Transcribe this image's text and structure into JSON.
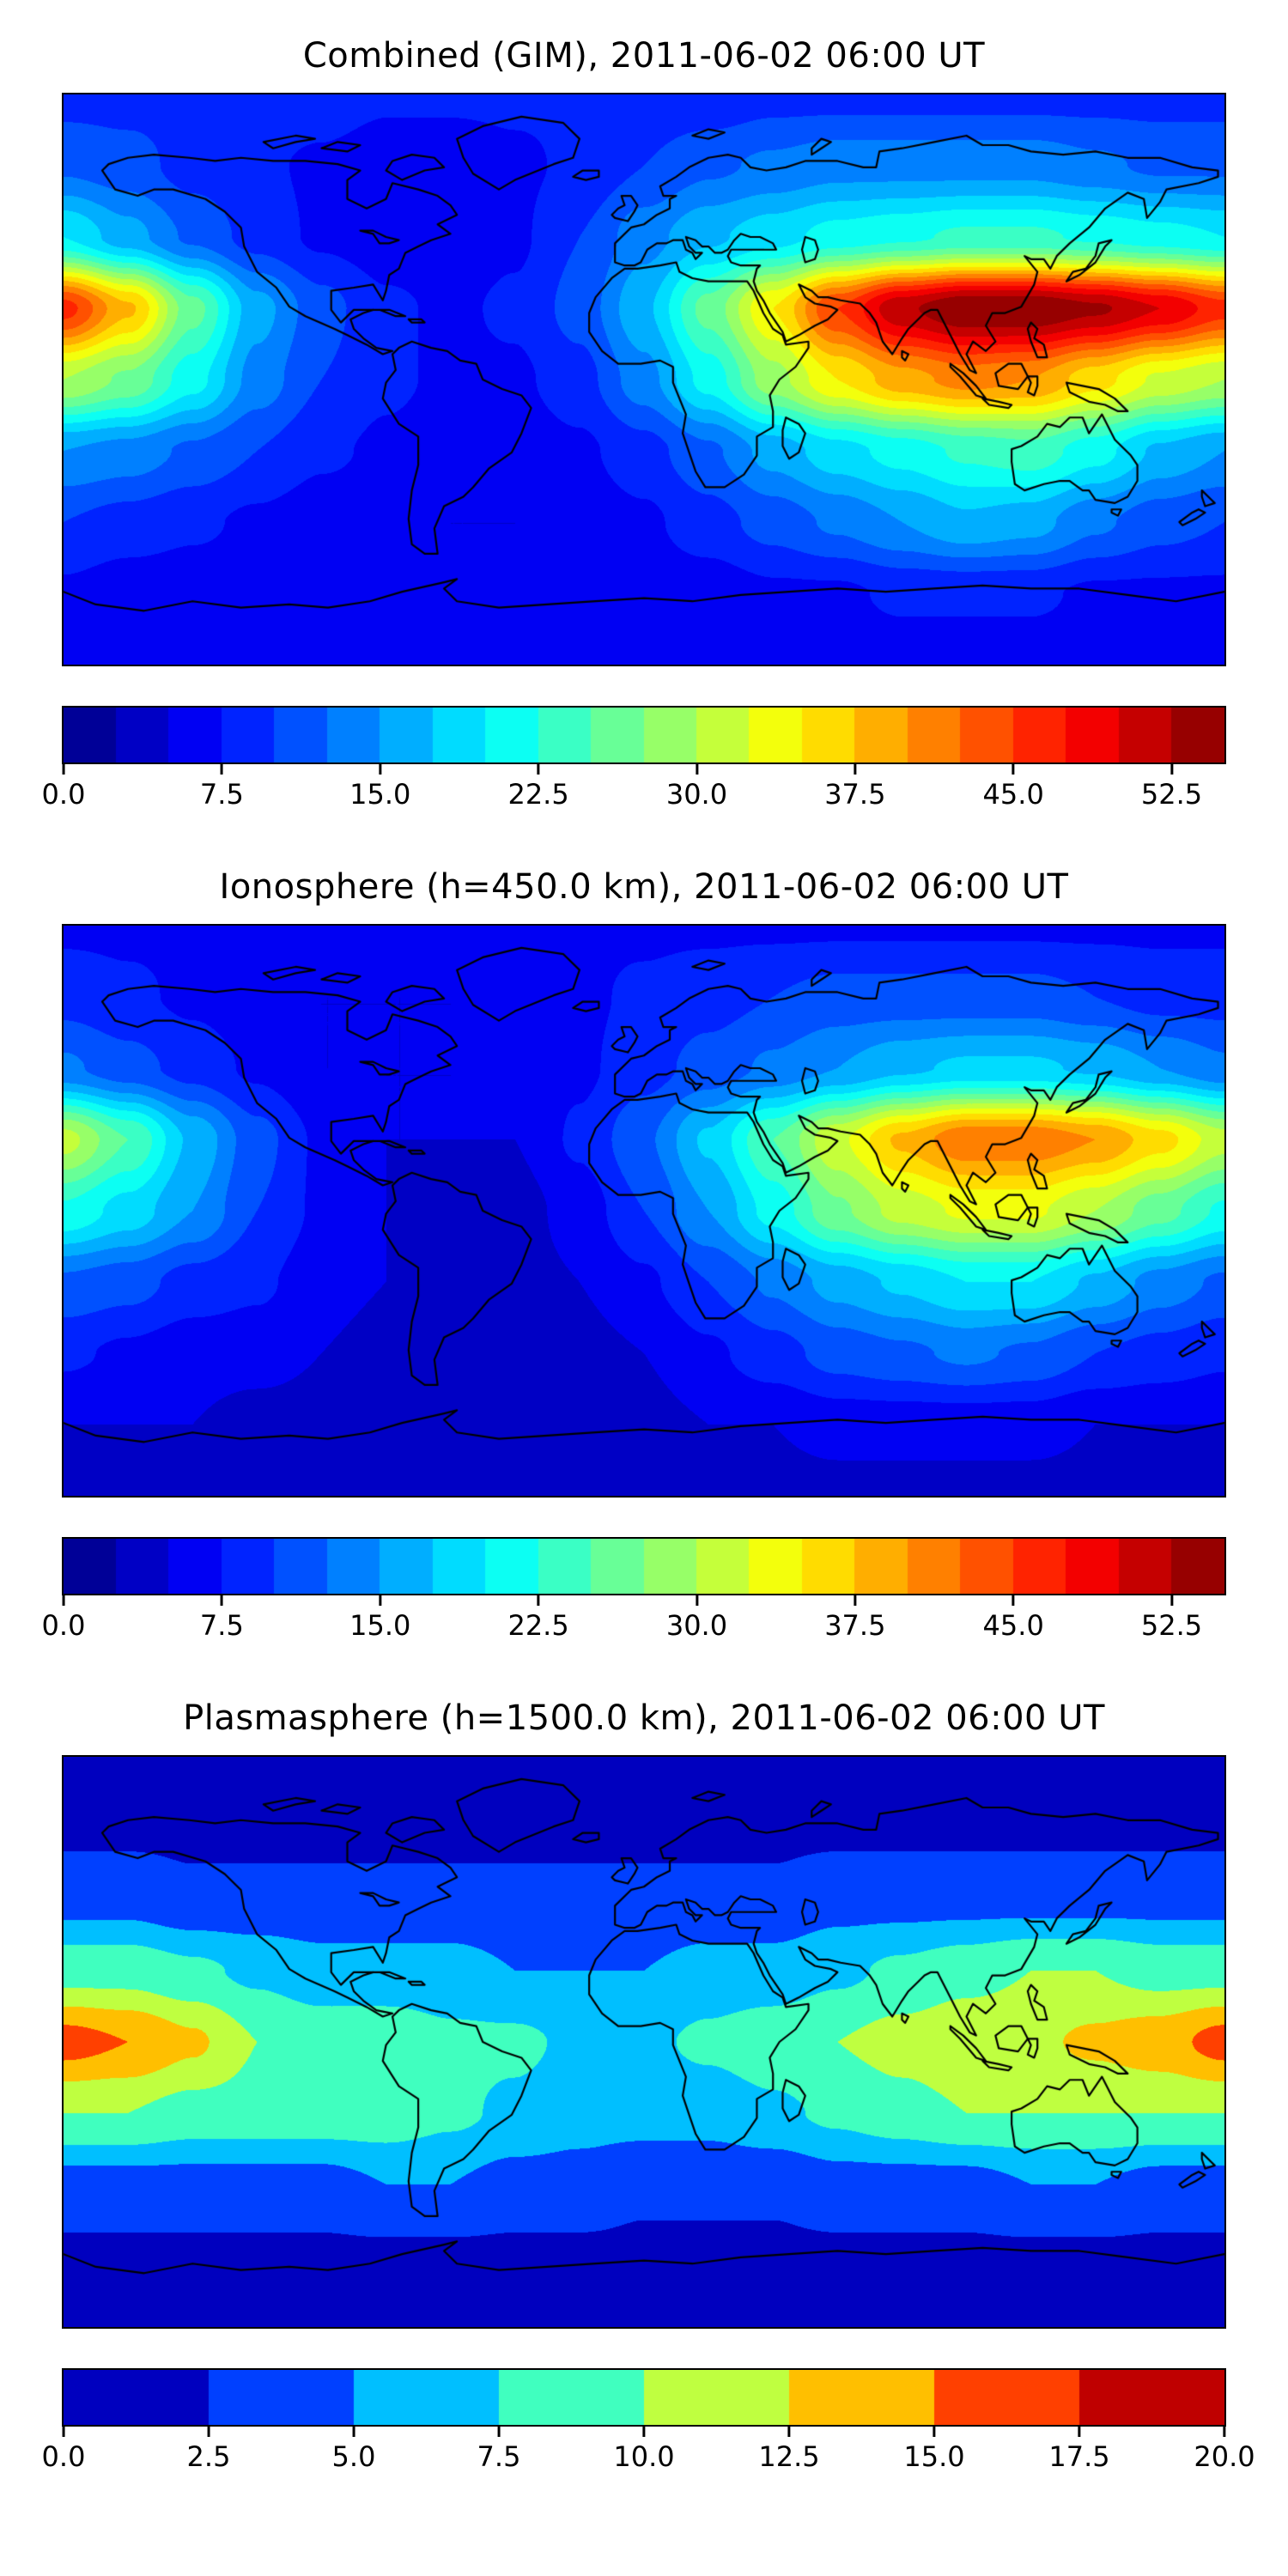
{
  "chart_data": [
    {
      "type": "heatmap",
      "subtype": "filled-contour-world-map",
      "title": "Combined (GIM), 2011-06-02 06:00 UT",
      "colormap": "jet",
      "projection": "equirectangular, lon -180..180, lat -90..90",
      "vmin": 0.0,
      "vmax": 55.0,
      "level_step": 2.5,
      "colorbar_ticks": [
        0.0,
        7.5,
        15.0,
        22.5,
        30.0,
        37.5,
        45.0,
        52.5
      ],
      "colorbar_tick_labels": [
        "0.0",
        "7.5",
        "15.0",
        "22.5",
        "30.0",
        "37.5",
        "45.0",
        "52.5"
      ],
      "lon": [
        -180,
        -160,
        -140,
        -120,
        -100,
        -80,
        -60,
        -40,
        -20,
        0,
        20,
        40,
        60,
        80,
        100,
        120,
        140,
        160,
        180
      ],
      "lat": [
        90,
        67.5,
        45,
        22.5,
        0,
        -22.5,
        -45,
        -67.5,
        -90
      ],
      "values": [
        [
          9,
          9,
          9,
          9,
          9,
          8,
          8,
          8,
          8,
          8,
          8,
          9,
          9,
          9,
          9,
          9,
          9,
          9,
          9
        ],
        [
          12,
          11,
          9,
          8,
          7,
          6,
          6,
          7,
          8,
          10,
          12,
          13,
          14,
          14,
          14,
          14,
          13,
          12,
          12
        ],
        [
          20,
          16,
          12,
          9,
          7,
          6,
          6,
          7,
          10,
          14,
          17,
          19,
          21,
          22,
          23,
          23,
          22,
          21,
          20
        ],
        [
          46,
          38,
          26,
          16,
          11,
          8,
          7,
          8,
          11,
          17,
          26,
          35,
          45,
          52,
          55,
          55,
          53,
          50,
          46
        ],
        [
          30,
          27,
          21,
          14,
          10,
          8,
          7,
          7,
          9,
          14,
          21,
          29,
          35,
          39,
          41,
          40,
          36,
          32,
          30
        ],
        [
          15,
          14,
          12,
          10,
          8,
          7,
          6,
          6,
          7,
          9,
          12,
          16,
          19,
          21,
          23,
          24,
          21,
          17,
          15
        ],
        [
          10,
          9,
          8,
          7,
          6,
          6,
          5,
          5,
          6,
          7,
          9,
          11,
          13,
          15,
          17,
          16,
          13,
          11,
          10
        ],
        [
          7,
          6,
          6,
          6,
          5,
          5,
          5,
          5,
          5,
          6,
          6,
          7,
          7,
          8,
          8,
          8,
          7,
          7,
          7
        ],
        [
          6,
          6,
          6,
          6,
          6,
          6,
          6,
          6,
          6,
          6,
          6,
          6,
          6,
          6,
          6,
          6,
          6,
          6,
          6
        ]
      ]
    },
    {
      "type": "heatmap",
      "subtype": "filled-contour-world-map",
      "title": "Ionosphere  (h=450.0 km), 2011-06-02 06:00 UT",
      "colormap": "jet",
      "projection": "equirectangular, lon -180..180, lat -90..90",
      "vmin": 0.0,
      "vmax": 55.0,
      "level_step": 2.5,
      "colorbar_ticks": [
        0.0,
        7.5,
        15.0,
        22.5,
        30.0,
        37.5,
        45.0,
        52.5
      ],
      "colorbar_tick_labels": [
        "0.0",
        "7.5",
        "15.0",
        "22.5",
        "30.0",
        "37.5",
        "45.0",
        "52.5"
      ],
      "lon": [
        -180,
        -160,
        -140,
        -120,
        -100,
        -80,
        -60,
        -40,
        -20,
        0,
        20,
        40,
        60,
        80,
        100,
        120,
        140,
        160,
        180
      ],
      "lat": [
        90,
        67.5,
        45,
        22.5,
        0,
        -22.5,
        -45,
        -67.5,
        -90
      ],
      "values": [
        [
          7,
          7,
          7,
          7,
          7,
          7,
          7,
          7,
          7,
          7,
          7,
          7,
          7,
          7,
          7,
          7,
          7,
          7,
          7
        ],
        [
          9,
          8,
          7,
          6,
          5,
          5,
          5,
          6,
          7,
          8,
          9,
          10,
          11,
          11,
          11,
          11,
          10,
          9,
          9
        ],
        [
          13,
          11,
          9,
          7,
          5,
          5,
          5,
          6,
          7,
          9,
          11,
          13,
          15,
          17,
          18,
          18,
          17,
          15,
          13
        ],
        [
          31,
          25,
          17,
          11,
          7,
          5,
          5,
          5,
          8,
          12,
          18,
          25,
          32,
          38,
          42,
          42,
          40,
          36,
          31
        ],
        [
          22,
          19,
          15,
          10,
          7,
          5,
          4,
          4,
          6,
          10,
          15,
          21,
          27,
          31,
          33,
          33,
          30,
          26,
          22
        ],
        [
          12,
          11,
          9,
          8,
          6,
          5,
          4,
          4,
          5,
          7,
          10,
          13,
          16,
          18,
          20,
          20,
          17,
          14,
          12
        ],
        [
          8,
          7,
          6,
          6,
          5,
          4,
          4,
          4,
          4,
          5,
          7,
          9,
          11,
          12,
          13,
          12,
          10,
          9,
          8
        ],
        [
          5,
          5,
          5,
          4,
          4,
          4,
          4,
          4,
          4,
          4,
          5,
          5,
          6,
          6,
          6,
          6,
          5,
          5,
          5
        ],
        [
          4,
          4,
          4,
          4,
          4,
          4,
          4,
          4,
          4,
          4,
          4,
          4,
          4,
          4,
          4,
          4,
          4,
          4,
          4
        ]
      ]
    },
    {
      "type": "heatmap",
      "subtype": "filled-contour-world-map",
      "title": "Plasmasphere (h=1500.0 km), 2011-06-02 06:00 UT",
      "colormap": "jet",
      "projection": "equirectangular, lon -180..180, lat -90..90",
      "vmin": 0.0,
      "vmax": 20.0,
      "level_step": 2.5,
      "colorbar_ticks": [
        0.0,
        2.5,
        5.0,
        7.5,
        10.0,
        12.5,
        15.0,
        17.5,
        20.0
      ],
      "colorbar_tick_labels": [
        "0.0",
        "2.5",
        "5.0",
        "7.5",
        "10.0",
        "12.5",
        "15.0",
        "17.5",
        "20.0"
      ],
      "lon": [
        -180,
        -160,
        -140,
        -120,
        -100,
        -80,
        -60,
        -40,
        -20,
        0,
        20,
        40,
        60,
        80,
        100,
        120,
        140,
        160,
        180
      ],
      "lat": [
        90,
        67.5,
        45,
        22.5,
        0,
        -22.5,
        -45,
        -67.5,
        -90
      ],
      "values": [
        [
          2,
          2,
          2,
          2,
          2,
          2,
          2,
          2,
          2,
          2,
          2,
          2,
          2,
          2,
          2,
          2,
          2,
          2,
          2
        ],
        [
          2,
          2,
          2,
          2,
          2,
          2,
          2,
          2,
          2,
          2,
          2,
          2,
          2,
          2,
          2,
          2,
          2,
          2,
          2
        ],
        [
          4,
          4,
          3,
          3,
          3,
          3,
          3,
          3,
          3,
          3,
          3,
          3,
          4,
          4,
          4,
          4,
          4,
          4,
          4
        ],
        [
          9,
          9,
          8,
          7,
          6,
          6,
          6,
          5,
          5,
          5,
          6,
          6,
          7,
          8,
          9,
          10,
          10,
          9,
          9
        ],
        [
          16,
          15,
          13,
          10,
          9,
          9,
          8,
          8,
          7,
          7,
          8,
          9,
          10,
          11,
          12,
          12,
          13,
          14,
          16
        ],
        [
          10,
          10,
          9,
          9,
          9,
          9,
          8,
          7,
          6,
          6,
          6,
          7,
          8,
          9,
          10,
          10,
          10,
          10,
          10
        ],
        [
          4,
          4,
          4,
          4,
          4,
          5,
          5,
          4,
          4,
          3,
          3,
          3,
          4,
          4,
          4,
          5,
          5,
          4,
          4
        ],
        [
          2,
          2,
          2,
          2,
          2,
          2,
          2,
          2,
          2,
          2,
          2,
          2,
          2,
          2,
          2,
          2,
          2,
          2,
          2
        ],
        [
          2,
          2,
          2,
          2,
          2,
          2,
          2,
          2,
          2,
          2,
          2,
          2,
          2,
          2,
          2,
          2,
          2,
          2,
          2
        ]
      ]
    }
  ]
}
